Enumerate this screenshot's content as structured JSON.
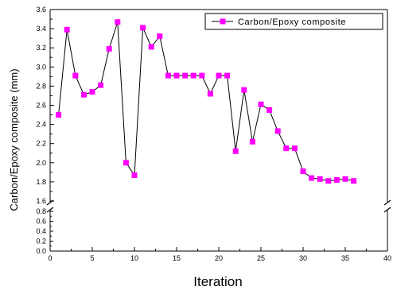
{
  "chart_data": {
    "type": "line",
    "title": "",
    "xlabel": "Iteration",
    "ylabel": "Carbon/Epoxy composite (mm)",
    "xlim": [
      0,
      40
    ],
    "x_ticks": [
      0,
      5,
      10,
      15,
      20,
      25,
      30,
      35,
      40
    ],
    "x_tick_labels": [
      "0",
      "5",
      "10",
      "15",
      "20",
      "25",
      "30",
      "35",
      "40"
    ],
    "y_axis_break": true,
    "ylim_lower": [
      0,
      0.8
    ],
    "ylim_upper": [
      1.6,
      3.6
    ],
    "y_ticks_lower": [
      0.0,
      0.2,
      0.4,
      0.6,
      0.8
    ],
    "y_tick_labels_lower": [
      "0.0",
      "0.2",
      "0.4",
      "0.6",
      "0.8"
    ],
    "y_ticks_upper": [
      1.6,
      1.8,
      2.0,
      2.2,
      2.4,
      2.6,
      2.8,
      3.0,
      3.2,
      3.4,
      3.6
    ],
    "y_tick_labels_upper": [
      "1.6",
      "1.8",
      "2.0",
      "2.2",
      "2.4",
      "2.6",
      "2.8",
      "3.0",
      "3.2",
      "3.4",
      "3.6"
    ],
    "grid": false,
    "legend_position": "top-right",
    "series": [
      {
        "name": "Carbon/Epoxy composite",
        "color": "#ff00ff",
        "line_color": "#000000",
        "marker": "square",
        "x": [
          1,
          2,
          3,
          4,
          5,
          6,
          7,
          8,
          9,
          10,
          11,
          12,
          13,
          14,
          15,
          16,
          17,
          18,
          19,
          20,
          21,
          22,
          23,
          24,
          25,
          26,
          27,
          28,
          29,
          30,
          31,
          32,
          33,
          34,
          35,
          36
        ],
        "y": [
          2.5,
          3.39,
          2.91,
          2.71,
          2.74,
          2.81,
          3.19,
          3.47,
          2.0,
          1.87,
          3.41,
          3.21,
          3.32,
          2.91,
          2.91,
          2.91,
          2.91,
          2.91,
          2.72,
          2.91,
          2.91,
          2.12,
          2.76,
          2.22,
          2.61,
          2.55,
          2.33,
          2.15,
          2.15,
          1.91,
          1.84,
          1.83,
          1.81,
          1.82,
          1.83,
          1.81
        ]
      }
    ]
  }
}
